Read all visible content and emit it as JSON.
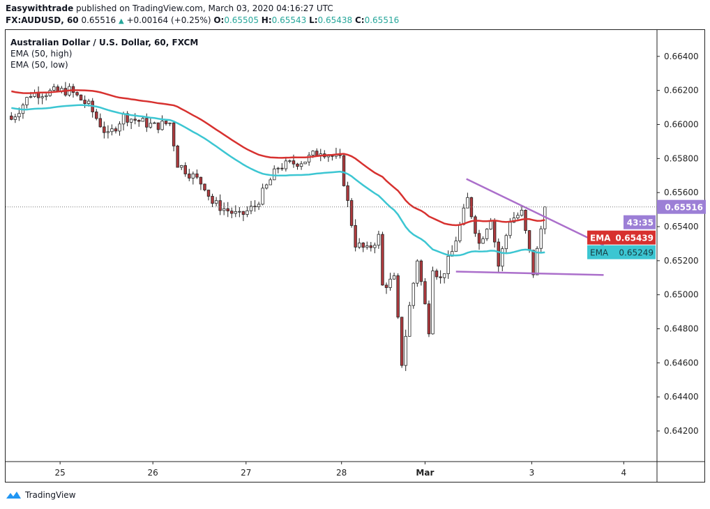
{
  "header": {
    "author": "Easywithtrade",
    "published": "published on TradingView.com, March 03, 2020 04:16:27 UTC",
    "symbol": "FX:AUDUSD, 60",
    "last": "0.65516",
    "change": "+0.00164 (+0.25%)",
    "o_label": "O:",
    "o": "0.65505",
    "h_label": "H:",
    "h": "0.65543",
    "l_label": "L:",
    "l": "0.65438",
    "c_label": "C:",
    "c": "0.65516"
  },
  "legend": {
    "title": "Australian Dollar / U.S. Dollar, 60, FXCM",
    "ema_high": "EMA (50, high)",
    "ema_low": "EMA (50, low)"
  },
  "footer": {
    "brand": "TradingView"
  },
  "colors": {
    "up": "#ffffff",
    "down": "#b03a3e",
    "wick": "#222222",
    "ema_high": "#d7312f",
    "ema_low": "#3cc6d2",
    "trendline": "#ab6fcb",
    "price_label": "#9c7fd6"
  },
  "chart_data": {
    "type": "candlestick",
    "title": "Australian Dollar / U.S. Dollar, 60, FXCM",
    "ylim": [
      0.6402,
      0.66555
    ],
    "xlim_bars": [
      -1.5,
      167
    ],
    "yticks": [
      "0.66400",
      "0.66200",
      "0.66000",
      "0.65800",
      "0.65600",
      "0.65400",
      "0.65200",
      "0.65000",
      "0.64800",
      "0.64600",
      "0.64400",
      "0.64200"
    ],
    "xticks": [
      {
        "label": "25",
        "bar": 12.6
      },
      {
        "label": "26",
        "bar": 36.6
      },
      {
        "label": "27",
        "bar": 60.7
      },
      {
        "label": "28",
        "bar": 85.4
      },
      {
        "label": "Mar",
        "bar": 107
      },
      {
        "label": "3",
        "bar": 134.6
      },
      {
        "label": "4",
        "bar": 158.4
      }
    ],
    "price_path_anchors": [
      [
        0,
        0.6603
      ],
      [
        5,
        0.6618
      ],
      [
        15,
        0.662
      ],
      [
        20,
        0.6611
      ],
      [
        25,
        0.6593
      ],
      [
        29,
        0.6605
      ],
      [
        37,
        0.6599
      ],
      [
        41,
        0.6601
      ],
      [
        43,
        0.6577
      ],
      [
        50,
        0.6564
      ],
      [
        52,
        0.6554
      ],
      [
        59,
        0.6546
      ],
      [
        63,
        0.6552
      ],
      [
        69,
        0.6575
      ],
      [
        76,
        0.6579
      ],
      [
        80,
        0.6585
      ],
      [
        85,
        0.6579
      ],
      [
        87,
        0.6554
      ],
      [
        89,
        0.653
      ],
      [
        92,
        0.6526
      ],
      [
        95,
        0.6534
      ],
      [
        96,
        0.6505
      ],
      [
        99,
        0.6509
      ],
      [
        101,
        0.646
      ],
      [
        103,
        0.6493
      ],
      [
        105,
        0.6521
      ],
      [
        108,
        0.648
      ],
      [
        109,
        0.6517
      ],
      [
        111,
        0.6509
      ],
      [
        114,
        0.6525
      ],
      [
        118,
        0.6556
      ],
      [
        121,
        0.653
      ],
      [
        124,
        0.6546
      ],
      [
        126,
        0.6517
      ],
      [
        129,
        0.6544
      ],
      [
        132,
        0.6548
      ],
      [
        135,
        0.6513
      ],
      [
        138,
        0.65516
      ]
    ],
    "ema_high": {
      "name": "EMA (50, high)",
      "start": 0.662,
      "last": 0.65439,
      "label": "EMA",
      "value": "0.65439"
    },
    "ema_low": {
      "name": "EMA (50, low)",
      "start": 0.661,
      "last": 0.65249,
      "label": "EMA",
      "value": "0.65249"
    },
    "trendlines": [
      {
        "name": "upper",
        "from": [
          117.7,
          0.6568
        ],
        "to": [
          153.2,
          0.6529
        ]
      },
      {
        "name": "lower",
        "from": [
          115,
          0.65136
        ],
        "to": [
          153.2,
          0.65116
        ]
      }
    ],
    "current_price": {
      "value": "0.65516",
      "countdown": "43:35"
    }
  }
}
